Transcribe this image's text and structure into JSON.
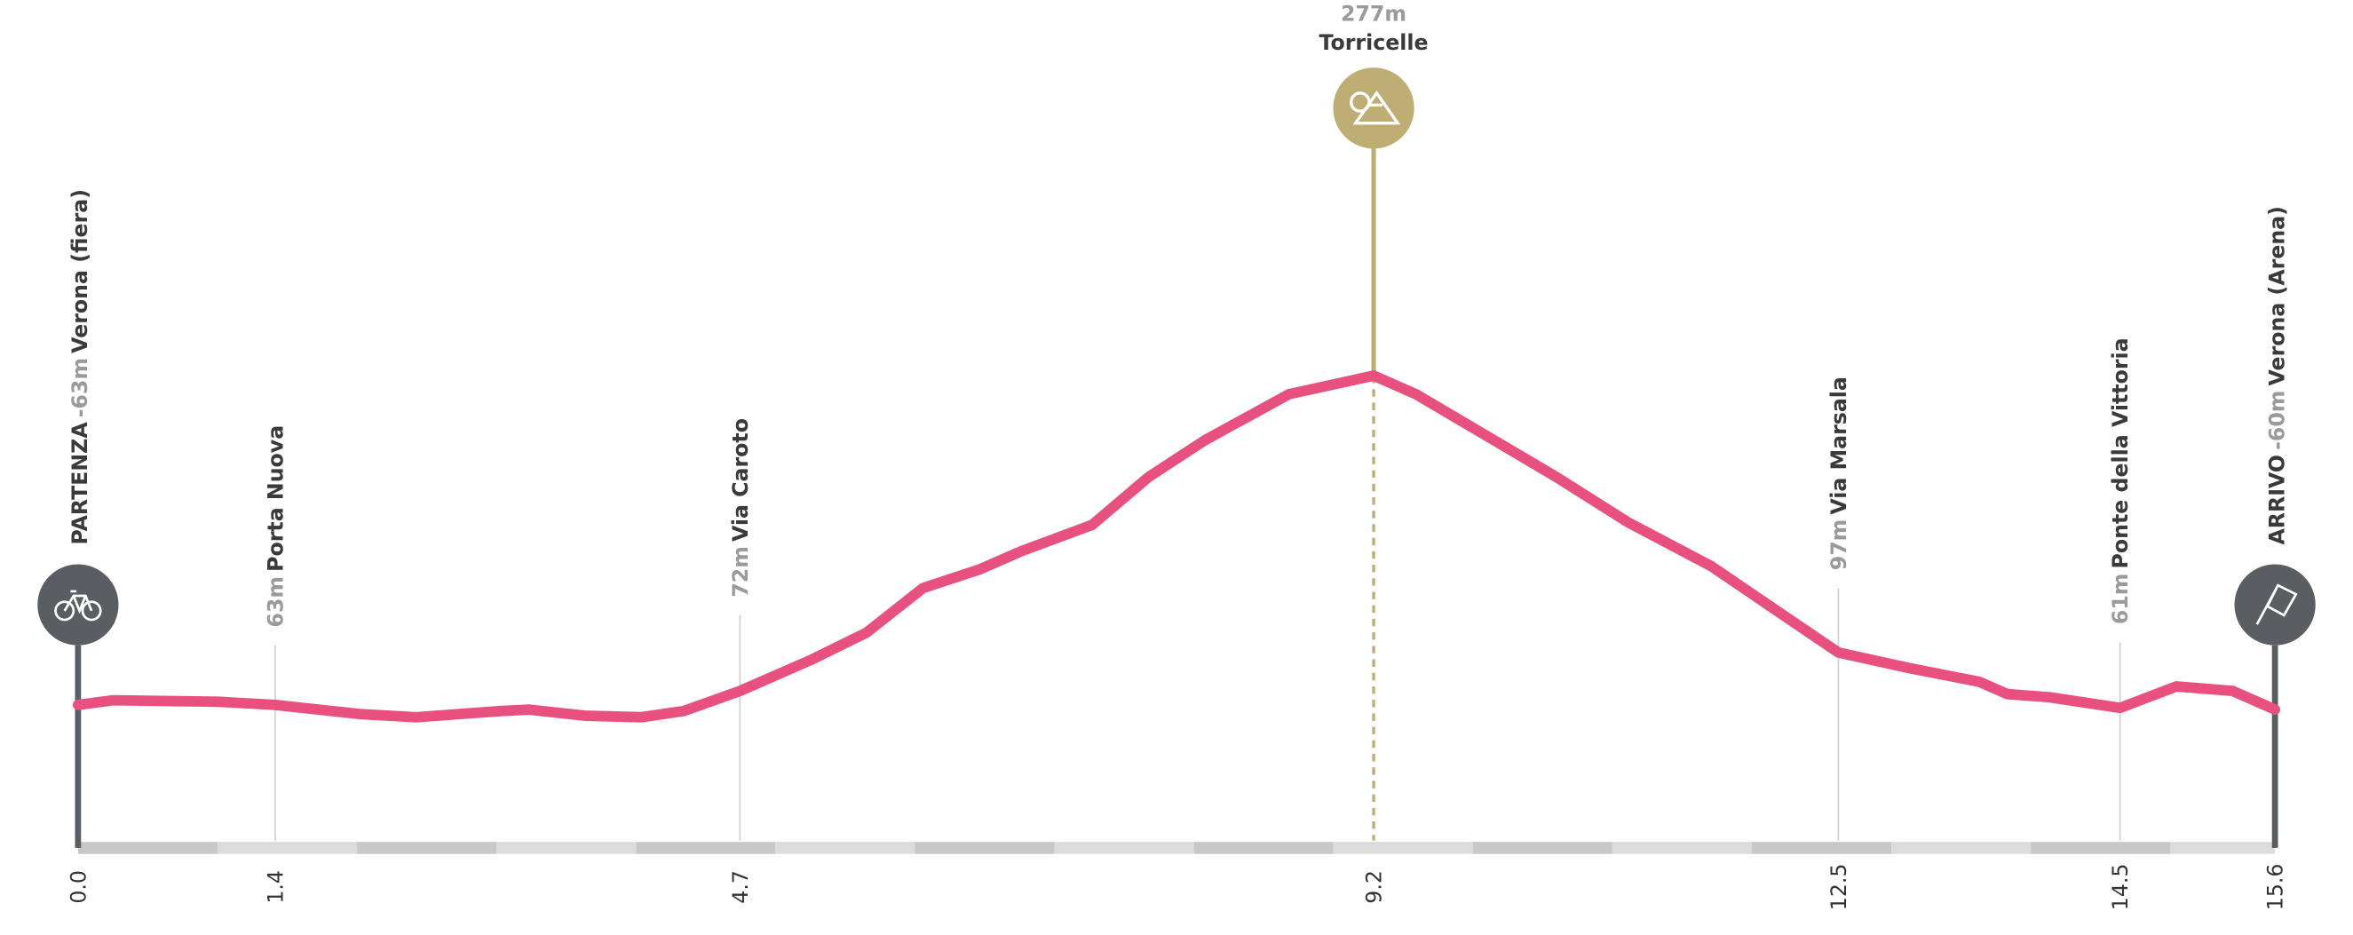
{
  "chart_data": {
    "type": "elevation-profile",
    "x": [
      0,
      0.25,
      1.0,
      1.4,
      2.0,
      2.4,
      3.0,
      3.2,
      3.6,
      4.0,
      4.3,
      4.7,
      5.2,
      5.6,
      6.0,
      6.4,
      6.7,
      7.2,
      7.6,
      8.0,
      8.3,
      8.6,
      9.0,
      9.2,
      9.5,
      10.0,
      10.5,
      11.0,
      11.6,
      12.0,
      12.5,
      13.0,
      13.5,
      13.7,
      14.0,
      14.5,
      14.9,
      15.3,
      15.6
    ],
    "values": [
      63,
      66,
      65,
      63,
      57,
      55,
      59,
      60,
      56,
      55,
      59,
      72,
      92,
      110,
      139,
      151,
      163,
      180,
      211,
      235,
      250,
      265,
      273,
      277,
      265,
      238,
      211,
      182,
      153,
      128,
      97,
      87,
      78,
      70,
      68,
      61,
      75,
      72,
      60
    ],
    "color": "#e8517f",
    "xlim": [
      0,
      15.6
    ],
    "ylim": [
      -30,
      290
    ],
    "xticks": [
      {
        "value": 0,
        "label": "0.0"
      },
      1.4,
      4.7,
      9.2,
      12.5,
      14.5,
      15.6
    ],
    "waypoints": [
      {
        "tag": "PARTENZA",
        "elevation": "-63m",
        "name": "Verona (fiera)"
      },
      {
        "elevation": "63m",
        "name": "Porta Nuova"
      },
      {
        "elevation": "72m",
        "name": "Via Caroto"
      },
      {
        "elevation": "277m",
        "name": "Torricelle"
      },
      {
        "elevation": "97m",
        "name": "Via Marsala"
      },
      {
        "elevation": "61m",
        "name": "Ponte della Vittoria"
      },
      {
        "tag": "ARRIVO",
        "elevation": "-60m",
        "name": "Verona (Arena)"
      }
    ]
  }
}
